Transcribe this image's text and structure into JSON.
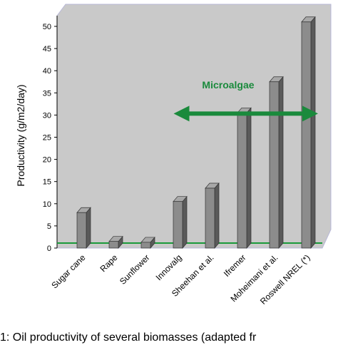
{
  "chart_data": {
    "type": "bar3d",
    "y_label": "Productivity (g/m2/day)",
    "annotation": "Microalgae",
    "caption": "1: Oil productivity of several biomasses (adapted fr",
    "categories": [
      "Sugar cane",
      "Rape",
      "Sunflower",
      "Innovalg",
      "Sheehan et al.",
      "Ifremer",
      "Moheimani et al.",
      "Roswell NREL (*)"
    ],
    "values": [
      8,
      1.5,
      1.3,
      10.5,
      13.5,
      30.5,
      37.5,
      51
    ],
    "color": "#8c8c8c",
    "ylim": [
      0,
      50
    ],
    "yticks": [
      0,
      5,
      10,
      15,
      20,
      25,
      30,
      35,
      40,
      45,
      50
    ],
    "grid": false
  }
}
